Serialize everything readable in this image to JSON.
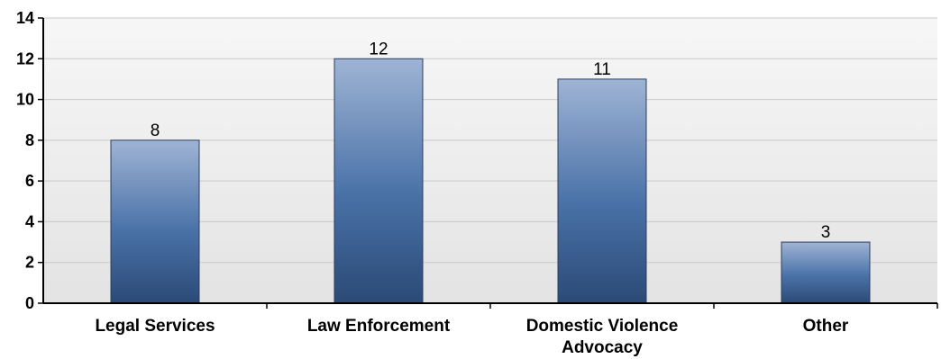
{
  "chart_data": {
    "type": "bar",
    "categories": [
      [
        "Legal Services"
      ],
      [
        "Law Enforcement"
      ],
      [
        "Domestic Violence",
        "Advocacy"
      ],
      [
        "Other"
      ]
    ],
    "values": [
      8,
      12,
      11,
      3
    ],
    "data_labels": [
      "8",
      "12",
      "11",
      "3"
    ],
    "ylim": [
      0,
      14
    ],
    "yticks": [
      0,
      2,
      4,
      6,
      8,
      10,
      12,
      14
    ],
    "grid": true,
    "legend": "none",
    "colors": {
      "bar_top": "#9fb4d4",
      "bar_mid": "#4a72a8",
      "bar_bottom": "#2b4a76",
      "bar_edge": "#2a3f5f",
      "plot_bg_top": "#f7f7f7",
      "plot_bg_bottom": "#e3e3e3",
      "grid": "#c8c8c8",
      "axis": "#000000"
    }
  }
}
